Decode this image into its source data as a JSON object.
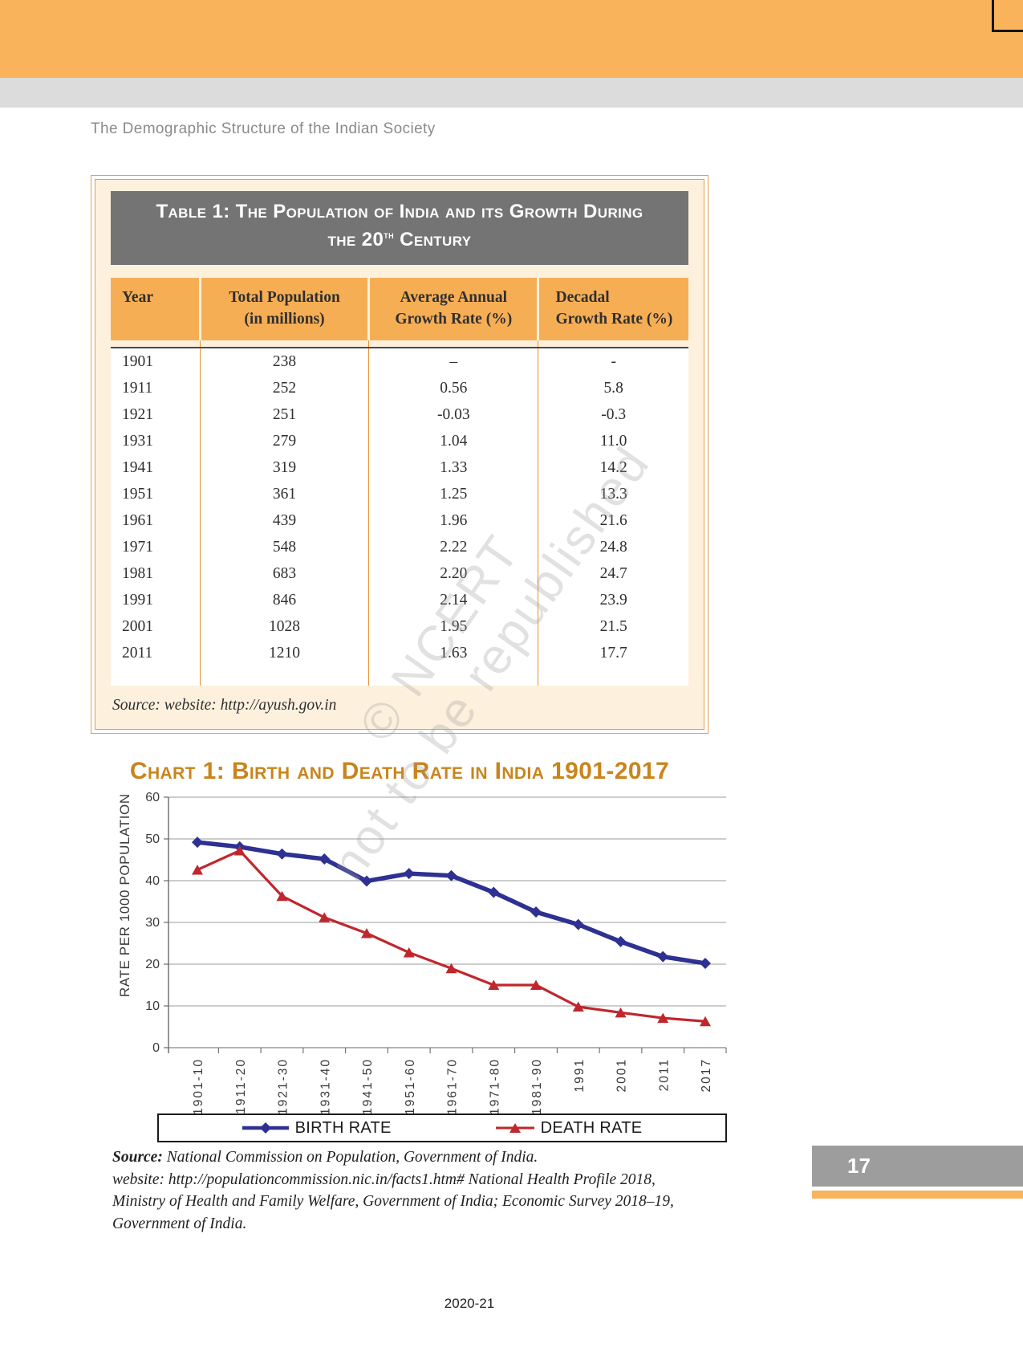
{
  "header": {
    "running_title": "The Demographic Structure of the Indian Society"
  },
  "colors": {
    "header_bar": "#F9B35B",
    "sub_bar": "#DCDCDC",
    "table_box_bg": "#FDF1DE",
    "table_box_border": "#DFA053",
    "table_title_bar": "#747474",
    "table_header_row": "#F6AE55",
    "chart_title": "#C9841C",
    "birth_rate_line": "#2E3192",
    "death_rate_line": "#C0272D",
    "page_tab": "#9D9D9D"
  },
  "table": {
    "title_line1": "Table 1: The Population of India and its Growth During",
    "title_line2_pre": "the 20",
    "title_line2_sup": "th",
    "title_line2_post": " Century",
    "columns": [
      {
        "l1": "Year",
        "l2": ""
      },
      {
        "l1": "Total Population",
        "l2": "(in millions)"
      },
      {
        "l1": "Average Annual",
        "l2": "Growth Rate (%)"
      },
      {
        "l1": "Decadal",
        "l2": "Growth Rate (%)"
      }
    ],
    "rows": [
      [
        "1901",
        "238",
        "–",
        "-"
      ],
      [
        "1911",
        "252",
        "0.56",
        "5.8"
      ],
      [
        "1921",
        "251",
        "-0.03",
        "-0.3"
      ],
      [
        "1931",
        "279",
        "1.04",
        "11.0"
      ],
      [
        "1941",
        "319",
        "1.33",
        "14.2"
      ],
      [
        "1951",
        "361",
        "1.25",
        "13.3"
      ],
      [
        "1961",
        "439",
        "1.96",
        "21.6"
      ],
      [
        "1971",
        "548",
        "2.22",
        "24.8"
      ],
      [
        "1981",
        "683",
        "2.20",
        "24.7"
      ],
      [
        "1991",
        "846",
        "2.14",
        "23.9"
      ],
      [
        "2001",
        "1028",
        "1.95",
        "21.5"
      ],
      [
        "2011",
        "1210",
        "1.63",
        "17.7"
      ]
    ],
    "source": "Source: website: http://ayush.gov.in"
  },
  "chart_data": {
    "type": "line",
    "title": "Chart 1: Birth and Death Rate in India 1901-2017",
    "ylabel": "RATE PER 1000 POPULATION",
    "categories": [
      "1901-10",
      "1911-20",
      "1921-30",
      "1931-40",
      "1941-50",
      "1951-60",
      "1961-70",
      "1971-80",
      "1981-90",
      "1991",
      "2001",
      "2011",
      "2017"
    ],
    "series": [
      {
        "name": "BIRTH RATE",
        "color": "#2E3192",
        "marker": "diamond",
        "values": [
          49.2,
          48.1,
          46.4,
          45.2,
          39.9,
          41.7,
          41.2,
          37.2,
          32.5,
          29.5,
          25.4,
          21.8,
          20.2
        ]
      },
      {
        "name": "DEATH RATE",
        "color": "#C0272D",
        "marker": "triangle",
        "values": [
          42.6,
          47.2,
          36.3,
          31.2,
          27.4,
          22.8,
          19.0,
          15.0,
          15.0,
          9.8,
          8.4,
          7.1,
          6.3
        ]
      }
    ],
    "ylim": [
      0,
      60
    ],
    "ytick_step": 10,
    "grid": true,
    "legend_position": "bottom"
  },
  "chart_source": {
    "label": "Source:",
    "lines": [
      " National Commission on Population, Government of India.",
      "website: http://populationcommission.nic.in/facts1.htm# National Health Profile 2018,",
      "Ministry of Health and Family Welfare, Government of India; Economic Survey 2018–19,",
      "Government of India."
    ]
  },
  "watermark": {
    "line1": "© NCERT",
    "line2": "not to be republished"
  },
  "footer": {
    "page_number": "17",
    "edition": "2020-21"
  }
}
